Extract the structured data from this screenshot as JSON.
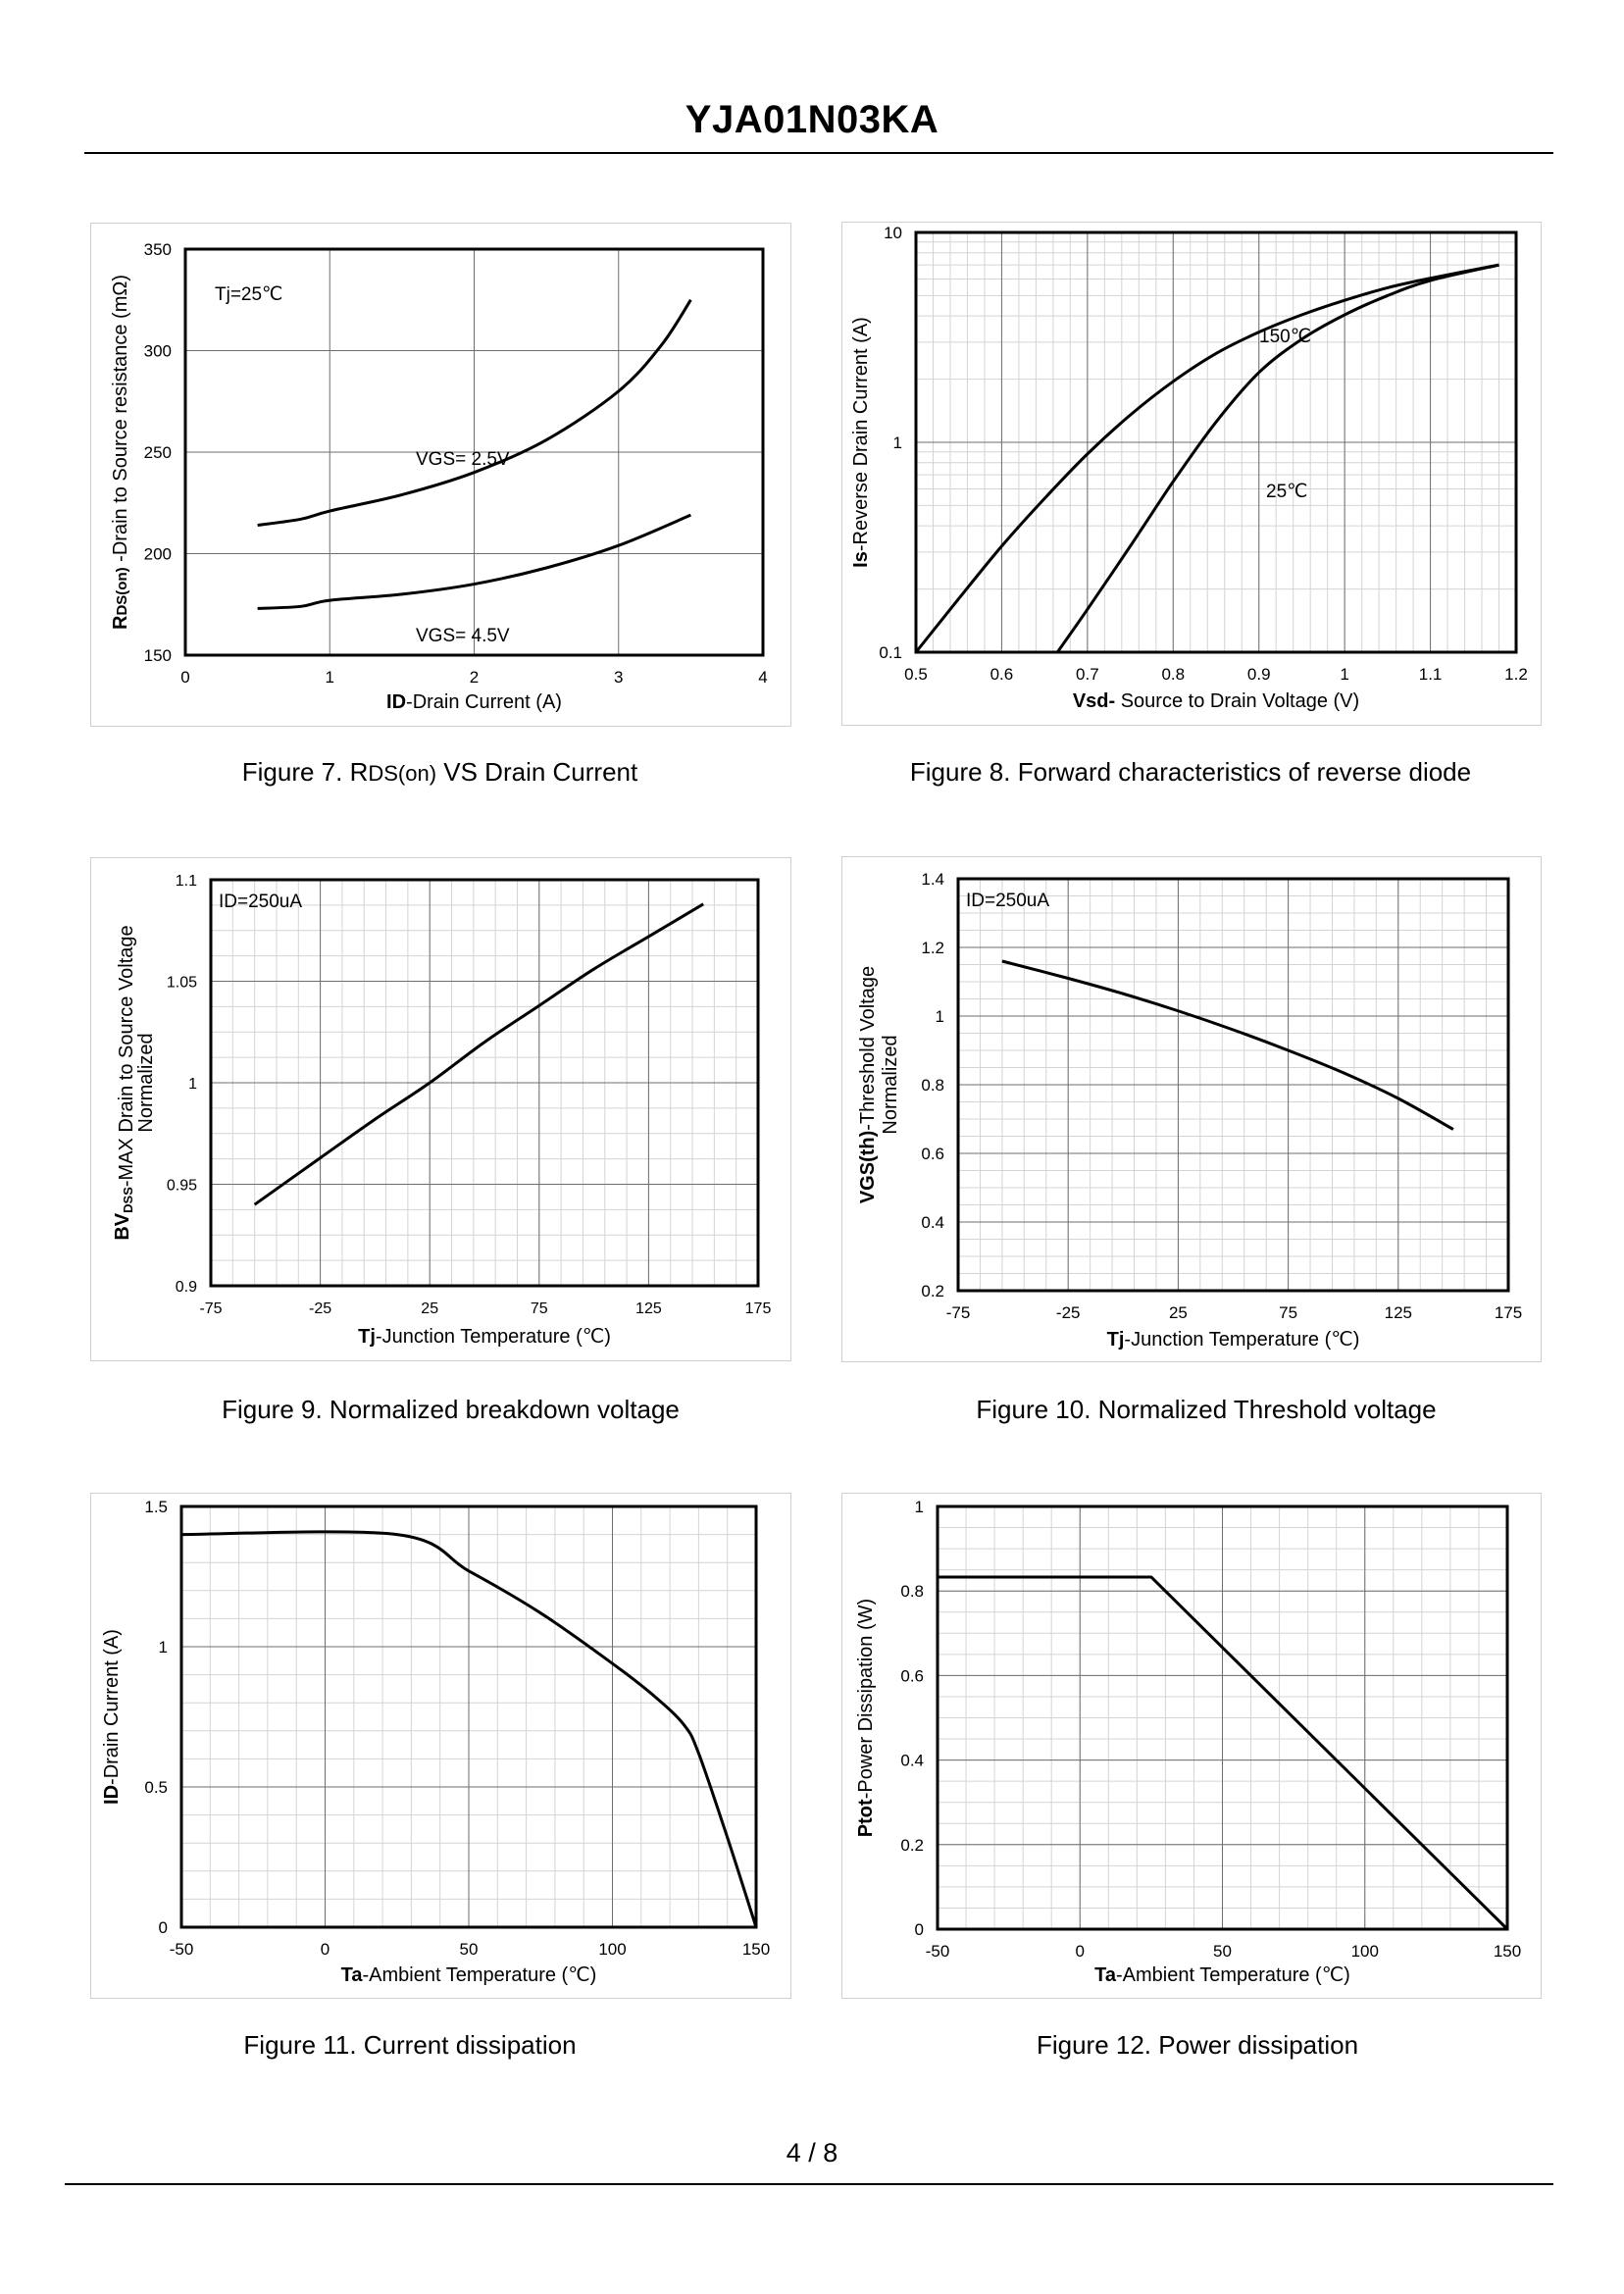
{
  "header": {
    "title": "YJA01N03KA"
  },
  "footer": {
    "page": "4 / 8"
  },
  "figures": {
    "fig7": {
      "caption_prefix": "Figure 7.  R",
      "caption_sub": "DS(on)",
      "caption_suffix": " VS Drain Current"
    },
    "fig8": {
      "caption": "Figure 8.  Forward characteristics of reverse diode"
    },
    "fig9": {
      "caption": "Figure 9.  Normalized breakdown voltage"
    },
    "fig10": {
      "caption": "Figure 10.  Normalized Threshold voltage"
    },
    "fig11": {
      "caption": "Figure 11.  Current dissipation"
    },
    "fig12": {
      "caption": "Figure 12.  Power dissipation"
    }
  },
  "chart_data": [
    {
      "id": "fig7",
      "type": "line",
      "title": "Figure 7. RDS(on) VS Drain Current",
      "xlabel_bold": "ID",
      "xlabel_rest": "-Drain Current (A)",
      "ylabel_R": "R",
      "ylabel_sub": "DS(on)",
      "ylabel_rest": " -Drain to Source resistance (mΩ)",
      "xlim": [
        0,
        4
      ],
      "ylim": [
        150,
        350
      ],
      "xticks": [
        0,
        1,
        2,
        3,
        4
      ],
      "yticks": [
        150,
        200,
        250,
        300,
        350
      ],
      "annotation": "Tj=25℃",
      "series": [
        {
          "name": "VGS= 2.5V",
          "x": [
            0.5,
            0.8,
            1.0,
            1.5,
            2.0,
            2.5,
            3.0,
            3.3,
            3.5
          ],
          "y": [
            214,
            217,
            221,
            229,
            240,
            256,
            280,
            303,
            325
          ]
        },
        {
          "name": "VGS= 4.5V",
          "x": [
            0.5,
            0.8,
            1.0,
            1.5,
            2.0,
            2.5,
            3.0,
            3.5
          ],
          "y": [
            173,
            174,
            177,
            180,
            185,
            193,
            204,
            219
          ]
        }
      ]
    },
    {
      "id": "fig8",
      "type": "line",
      "title": "Figure 8. Forward characteristics of reverse diode",
      "xlabel_bold": "Vsd-",
      "xlabel_rest": " Source to Drain Voltage (V)",
      "ylabel_bold": "Is",
      "ylabel_rest": "-Reverse Drain Current (A)",
      "xlim": [
        0.5,
        1.2
      ],
      "ylim": [
        0.1,
        10
      ],
      "yscale": "log",
      "xticks": [
        0.5,
        0.6,
        0.7,
        0.8,
        0.9,
        1,
        1.1,
        1.2
      ],
      "yticks": [
        0.1,
        1,
        10
      ],
      "series": [
        {
          "name": "150℃",
          "x": [
            0.5,
            0.55,
            0.6,
            0.65,
            0.7,
            0.75,
            0.8,
            0.85,
            0.9,
            0.95,
            1.0,
            1.05,
            1.1,
            1.18
          ],
          "y": [
            0.1,
            0.18,
            0.32,
            0.54,
            0.88,
            1.35,
            1.95,
            2.65,
            3.35,
            4.05,
            4.75,
            5.45,
            6.05,
            7.0
          ]
        },
        {
          "name": "25℃",
          "x": [
            0.665,
            0.7,
            0.75,
            0.8,
            0.85,
            0.9,
            0.95,
            1.0,
            1.05,
            1.1,
            1.18
          ],
          "y": [
            0.1,
            0.16,
            0.32,
            0.65,
            1.25,
            2.15,
            3.1,
            4.05,
            5.0,
            5.9,
            7.0
          ]
        }
      ]
    },
    {
      "id": "fig9",
      "type": "line",
      "title": "Figure 9. Normalized breakdown voltage",
      "xlabel_bold": "Tj",
      "xlabel_rest": "-Junction  Temperature (℃)",
      "ylabel_bold": "BV",
      "ylabel_sub": "DSS",
      "ylabel_rest": "-MAX Drain to Source Voltage",
      "ylabel_line2": "Normalized",
      "xlim": [
        -75,
        175
      ],
      "ylim": [
        0.9,
        1.1
      ],
      "xticks": [
        -75,
        -25,
        25,
        75,
        125,
        175
      ],
      "yticks": [
        0.9,
        0.95,
        1,
        1.05,
        1.1
      ],
      "annotation": "ID=250uA",
      "series": [
        {
          "name": "BVDSS",
          "x": [
            -55,
            -25,
            0,
            25,
            50,
            75,
            100,
            125,
            150
          ],
          "y": [
            0.94,
            0.963,
            0.982,
            1.0,
            1.02,
            1.038,
            1.056,
            1.072,
            1.088
          ]
        }
      ]
    },
    {
      "id": "fig10",
      "type": "line",
      "title": "Figure 10. Normalized Threshold voltage",
      "xlabel_bold": "Tj",
      "xlabel_rest": "-Junction  Temperature (℃)",
      "ylabel_bold": "VGS(th)",
      "ylabel_rest": "-Threshold Voltage",
      "ylabel_line2": "Normalized",
      "xlim": [
        -75,
        175
      ],
      "ylim": [
        0.2,
        1.4
      ],
      "xticks": [
        -75,
        -25,
        25,
        75,
        125,
        175
      ],
      "yticks": [
        0.2,
        0.4,
        0.6,
        0.8,
        1,
        1.2,
        1.4
      ],
      "annotation": "ID=250uA",
      "series": [
        {
          "name": "VGS(th)",
          "x": [
            -55,
            -25,
            0,
            25,
            50,
            75,
            100,
            125,
            150
          ],
          "y": [
            1.16,
            1.11,
            1.065,
            1.015,
            0.96,
            0.9,
            0.835,
            0.76,
            0.67
          ]
        }
      ]
    },
    {
      "id": "fig11",
      "type": "line",
      "title": "Figure 11. Current dissipation",
      "xlabel_bold": "Ta",
      "xlabel_rest": "-Ambient Temperature (℃)",
      "ylabel_bold": "ID",
      "ylabel_rest": "-Drain Current (A)",
      "xlim": [
        -50,
        150
      ],
      "ylim": [
        0,
        1.5
      ],
      "xticks": [
        -50,
        0,
        50,
        100,
        150
      ],
      "yticks": [
        0,
        0.5,
        1,
        1.5
      ],
      "series": [
        {
          "name": "ID",
          "x": [
            -50,
            25,
            50,
            75,
            100,
            115,
            125,
            130,
            140,
            150
          ],
          "y": [
            1.4,
            1.4,
            1.27,
            1.12,
            0.94,
            0.82,
            0.72,
            0.62,
            0.32,
            0.0
          ]
        }
      ]
    },
    {
      "id": "fig12",
      "type": "line",
      "title": "Figure 12. Power dissipation",
      "xlabel_bold": "Ta",
      "xlabel_rest": "-Ambient Temperature (℃)",
      "ylabel_bold": "Ptot",
      "ylabel_rest": "-Power Dissipation (W)",
      "xlim": [
        -50,
        150
      ],
      "ylim": [
        0,
        1
      ],
      "xticks": [
        -50,
        0,
        50,
        100,
        150
      ],
      "yticks": [
        0,
        0.2,
        0.4,
        0.6,
        0.8,
        1
      ],
      "series": [
        {
          "name": "Ptot",
          "x": [
            -50,
            25,
            150
          ],
          "y": [
            0.833,
            0.833,
            0.0
          ]
        }
      ]
    }
  ]
}
